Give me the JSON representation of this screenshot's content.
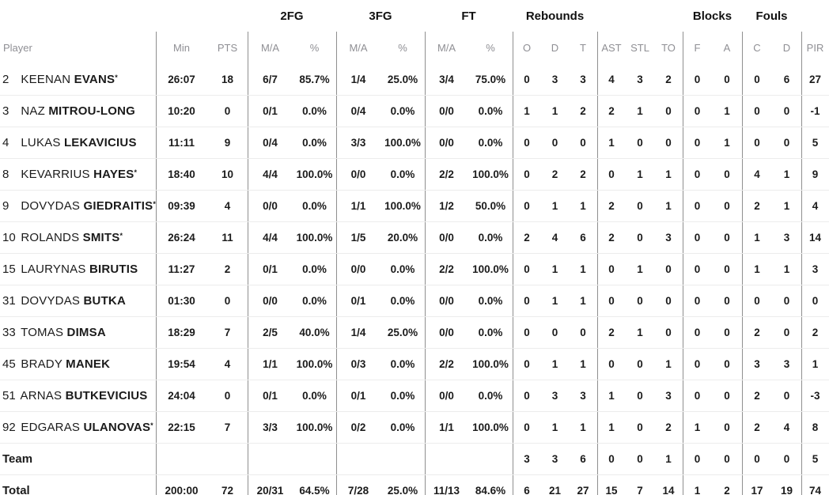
{
  "colors": {
    "text": "#1b1b1b",
    "header_gray": "#8f8f94",
    "vertical_divider": "#8f8f8f",
    "row_line": "#ececec",
    "background": "#ffffff"
  },
  "table": {
    "groups": {
      "fg2": "2FG",
      "fg3": "3FG",
      "ft": "FT",
      "rebounds": "Rebounds",
      "blocks": "Blocks",
      "fouls": "Fouls"
    },
    "columns": {
      "player": "Player",
      "min": "Min",
      "pts": "PTS",
      "ma": "M/A",
      "pct": "%",
      "o": "O",
      "d": "D",
      "t": "T",
      "ast": "AST",
      "stl": "STL",
      "to": "TO",
      "f": "F",
      "a": "A",
      "c": "C",
      "d2": "D",
      "pir": "PIR"
    },
    "rows": [
      {
        "num": "2",
        "first": "KEENAN",
        "last": "EVANS",
        "star": true,
        "min": "26:07",
        "pts": "18",
        "f2ma": "6/7",
        "f2p": "85.7%",
        "f3ma": "1/4",
        "f3p": "25.0%",
        "ftma": "3/4",
        "ftp": "75.0%",
        "ro": "0",
        "rd": "3",
        "rt": "3",
        "ast": "4",
        "stl": "3",
        "to": "2",
        "bf": "0",
        "ba": "0",
        "fc": "0",
        "fd": "6",
        "pir": "27"
      },
      {
        "num": "3",
        "first": "NAZ",
        "last": "MITROU-LONG",
        "star": false,
        "min": "10:20",
        "pts": "0",
        "f2ma": "0/1",
        "f2p": "0.0%",
        "f3ma": "0/4",
        "f3p": "0.0%",
        "ftma": "0/0",
        "ftp": "0.0%",
        "ro": "1",
        "rd": "1",
        "rt": "2",
        "ast": "2",
        "stl": "1",
        "to": "0",
        "bf": "0",
        "ba": "1",
        "fc": "0",
        "fd": "0",
        "pir": "-1"
      },
      {
        "num": "4",
        "first": "LUKAS",
        "last": "LEKAVICIUS",
        "star": false,
        "min": "11:11",
        "pts": "9",
        "f2ma": "0/4",
        "f2p": "0.0%",
        "f3ma": "3/3",
        "f3p": "100.0%",
        "ftma": "0/0",
        "ftp": "0.0%",
        "ro": "0",
        "rd": "0",
        "rt": "0",
        "ast": "1",
        "stl": "0",
        "to": "0",
        "bf": "0",
        "ba": "1",
        "fc": "0",
        "fd": "0",
        "pir": "5"
      },
      {
        "num": "8",
        "first": "KEVARRIUS",
        "last": "HAYES",
        "star": true,
        "min": "18:40",
        "pts": "10",
        "f2ma": "4/4",
        "f2p": "100.0%",
        "f3ma": "0/0",
        "f3p": "0.0%",
        "ftma": "2/2",
        "ftp": "100.0%",
        "ro": "0",
        "rd": "2",
        "rt": "2",
        "ast": "0",
        "stl": "1",
        "to": "1",
        "bf": "0",
        "ba": "0",
        "fc": "4",
        "fd": "1",
        "pir": "9"
      },
      {
        "num": "9",
        "first": "DOVYDAS",
        "last": "GIEDRAITIS",
        "star": true,
        "min": "09:39",
        "pts": "4",
        "f2ma": "0/0",
        "f2p": "0.0%",
        "f3ma": "1/1",
        "f3p": "100.0%",
        "ftma": "1/2",
        "ftp": "50.0%",
        "ro": "0",
        "rd": "1",
        "rt": "1",
        "ast": "2",
        "stl": "0",
        "to": "1",
        "bf": "0",
        "ba": "0",
        "fc": "2",
        "fd": "1",
        "pir": "4"
      },
      {
        "num": "10",
        "first": "ROLANDS",
        "last": "SMITS",
        "star": true,
        "min": "26:24",
        "pts": "11",
        "f2ma": "4/4",
        "f2p": "100.0%",
        "f3ma": "1/5",
        "f3p": "20.0%",
        "ftma": "0/0",
        "ftp": "0.0%",
        "ro": "2",
        "rd": "4",
        "rt": "6",
        "ast": "2",
        "stl": "0",
        "to": "3",
        "bf": "0",
        "ba": "0",
        "fc": "1",
        "fd": "3",
        "pir": "14"
      },
      {
        "num": "15",
        "first": "LAURYNAS",
        "last": "BIRUTIS",
        "star": false,
        "min": "11:27",
        "pts": "2",
        "f2ma": "0/1",
        "f2p": "0.0%",
        "f3ma": "0/0",
        "f3p": "0.0%",
        "ftma": "2/2",
        "ftp": "100.0%",
        "ro": "0",
        "rd": "1",
        "rt": "1",
        "ast": "0",
        "stl": "1",
        "to": "0",
        "bf": "0",
        "ba": "0",
        "fc": "1",
        "fd": "1",
        "pir": "3"
      },
      {
        "num": "31",
        "first": "DOVYDAS",
        "last": "BUTKA",
        "star": false,
        "min": "01:30",
        "pts": "0",
        "f2ma": "0/0",
        "f2p": "0.0%",
        "f3ma": "0/1",
        "f3p": "0.0%",
        "ftma": "0/0",
        "ftp": "0.0%",
        "ro": "0",
        "rd": "1",
        "rt": "1",
        "ast": "0",
        "stl": "0",
        "to": "0",
        "bf": "0",
        "ba": "0",
        "fc": "0",
        "fd": "0",
        "pir": "0"
      },
      {
        "num": "33",
        "first": "TOMAS",
        "last": "DIMSA",
        "star": false,
        "min": "18:29",
        "pts": "7",
        "f2ma": "2/5",
        "f2p": "40.0%",
        "f3ma": "1/4",
        "f3p": "25.0%",
        "ftma": "0/0",
        "ftp": "0.0%",
        "ro": "0",
        "rd": "0",
        "rt": "0",
        "ast": "2",
        "stl": "1",
        "to": "0",
        "bf": "0",
        "ba": "0",
        "fc": "2",
        "fd": "0",
        "pir": "2"
      },
      {
        "num": "45",
        "first": "BRADY",
        "last": "MANEK",
        "star": false,
        "min": "19:54",
        "pts": "4",
        "f2ma": "1/1",
        "f2p": "100.0%",
        "f3ma": "0/3",
        "f3p": "0.0%",
        "ftma": "2/2",
        "ftp": "100.0%",
        "ro": "0",
        "rd": "1",
        "rt": "1",
        "ast": "0",
        "stl": "0",
        "to": "1",
        "bf": "0",
        "ba": "0",
        "fc": "3",
        "fd": "3",
        "pir": "1"
      },
      {
        "num": "51",
        "first": "ARNAS",
        "last": "BUTKEVICIUS",
        "star": false,
        "min": "24:04",
        "pts": "0",
        "f2ma": "0/1",
        "f2p": "0.0%",
        "f3ma": "0/1",
        "f3p": "0.0%",
        "ftma": "0/0",
        "ftp": "0.0%",
        "ro": "0",
        "rd": "3",
        "rt": "3",
        "ast": "1",
        "stl": "0",
        "to": "3",
        "bf": "0",
        "ba": "0",
        "fc": "2",
        "fd": "0",
        "pir": "-3"
      },
      {
        "num": "92",
        "first": "EDGARAS",
        "last": "ULANOVAS",
        "star": true,
        "min": "22:15",
        "pts": "7",
        "f2ma": "3/3",
        "f2p": "100.0%",
        "f3ma": "0/2",
        "f3p": "0.0%",
        "ftma": "1/1",
        "ftp": "100.0%",
        "ro": "0",
        "rd": "1",
        "rt": "1",
        "ast": "1",
        "stl": "0",
        "to": "2",
        "bf": "1",
        "ba": "0",
        "fc": "2",
        "fd": "4",
        "pir": "8"
      },
      {
        "type": "team",
        "label": "Team",
        "min": "",
        "pts": "",
        "f2ma": "",
        "f2p": "",
        "f3ma": "",
        "f3p": "",
        "ftma": "",
        "ftp": "",
        "ro": "3",
        "rd": "3",
        "rt": "6",
        "ast": "0",
        "stl": "0",
        "to": "1",
        "bf": "0",
        "ba": "0",
        "fc": "0",
        "fd": "0",
        "pir": "5"
      },
      {
        "type": "total",
        "label": "Total",
        "min": "200:00",
        "pts": "72",
        "f2ma": "20/31",
        "f2p": "64.5%",
        "f3ma": "7/28",
        "f3p": "25.0%",
        "ftma": "11/13",
        "ftp": "84.6%",
        "ro": "6",
        "rd": "21",
        "rt": "27",
        "ast": "15",
        "stl": "7",
        "to": "14",
        "bf": "1",
        "ba": "2",
        "fc": "17",
        "fd": "19",
        "pir": "74"
      }
    ]
  }
}
